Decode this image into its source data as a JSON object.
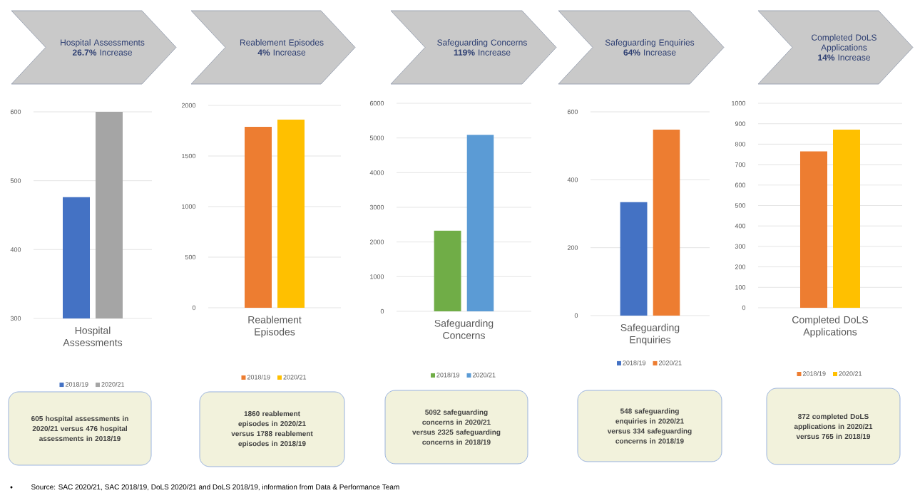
{
  "chart_data": [
    {
      "type": "bar",
      "title": "Hospital Assessments **26.7%** Increase",
      "categories": [
        "Hospital Assessments"
      ],
      "series": [
        {
          "name": "2018/19",
          "color": "#4472c4",
          "values": [
            476
          ]
        },
        {
          "name": "2020/21",
          "color": "#a5a5a5",
          "values": [
            600
          ]
        }
      ],
      "ylim": [
        300,
        600
      ],
      "yticks": [
        300,
        400,
        500,
        600
      ],
      "grid": "y",
      "legend": "bottom",
      "annotations": [
        "605 hospital assessments in 2020/21 versus 476 hospital assessments in 2018/19",
        "Source: SAC 2020/21, SAC 2018/19, DoLS 2020/21 and DoLS 2018/19, information from Data & Performance Team"
      ]
    },
    {
      "type": "bar",
      "title": "Reablement Episodes **4%** Increase",
      "categories": [
        "Reablement Episodes"
      ],
      "series": [
        {
          "name": "2018/19",
          "color": "#ed7d31",
          "values": [
            1788
          ]
        },
        {
          "name": "2020/21",
          "color": "#ffc000",
          "values": [
            1860
          ]
        }
      ],
      "ylim": [
        0,
        2000
      ],
      "yticks": [
        0,
        500,
        1000,
        1500,
        2000
      ],
      "grid": "y",
      "legend": "bottom",
      "annotations": [
        "1860 reablement episodes in 2020/21 versus 1788 reablement episodes in 2018/19"
      ]
    },
    {
      "type": "bar",
      "title": "Safeguarding Concerns **119%** Increase",
      "categories": [
        "Safeguarding Concerns"
      ],
      "series": [
        {
          "name": "2018/19",
          "color": "#70ad47",
          "values": [
            2325
          ]
        },
        {
          "name": "2020/21",
          "color": "#5b9bd5",
          "values": [
            5092
          ]
        }
      ],
      "ylim": [
        0,
        6000
      ],
      "yticks": [
        0,
        1000,
        2000,
        3000,
        4000,
        5000,
        6000
      ],
      "grid": "y",
      "legend": "bottom",
      "annotations": [
        "5092 safeguarding concerns in 2020/21 versus 2325 safeguarding concerns in 2018/19"
      ]
    },
    {
      "type": "bar",
      "title": "Safeguarding Enquiries **64%** Increase",
      "categories": [
        "Safeguarding Enquiries"
      ],
      "series": [
        {
          "name": "2018/19",
          "color": "#4472c4",
          "values": [
            334
          ]
        },
        {
          "name": "2020/21",
          "color": "#ed7d31",
          "values": [
            548
          ]
        }
      ],
      "ylim": [
        0,
        600
      ],
      "yticks": [
        0,
        200,
        400,
        600
      ],
      "grid": "y",
      "legend": "bottom",
      "annotations": [
        "548 safeguarding enquiries in 2020/21 versus 334 safeguarding concerns in 2018/19"
      ]
    },
    {
      "type": "bar",
      "title": "Completed DoLS Applications **14%** Increase",
      "categories": [
        "Completed DoLS Applications"
      ],
      "series": [
        {
          "name": "2018/19",
          "color": "#ed7d31",
          "values": [
            765
          ]
        },
        {
          "name": "2020/21",
          "color": "#ffc000",
          "values": [
            872
          ]
        }
      ],
      "ylim": [
        0,
        1000
      ],
      "yticks": [
        0,
        100,
        200,
        300,
        400,
        500,
        600,
        700,
        800,
        900,
        1000
      ],
      "grid": "y",
      "legend": "bottom",
      "annotations": [
        "872 completed DoLS applications in 2020/21 versus 765 in 2018/19"
      ]
    }
  ]
}
